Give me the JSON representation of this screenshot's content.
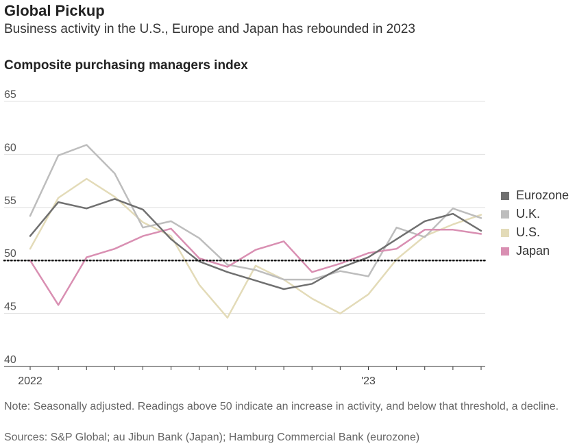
{
  "header": {
    "title": "Global Pickup",
    "subtitle": "Business activity in the U.S., Europe and Japan has rebounded in 2023",
    "chart_label": "Composite purchasing managers index"
  },
  "footer": {
    "note": "Note: Seasonally adjusted. Readings above 50 indicate an increase in activity, and below that threshold, a decline.",
    "sources": "Sources: S&P Global; au Jibun Bank (Japan); Hamburg Commercial Bank (eurozone)"
  },
  "colors": {
    "Eurozone": "#707070",
    "U.K.": "#bdbdbd",
    "U.S.": "#e3dbb8",
    "Japan": "#d98fb2",
    "reference_line": "#111111",
    "grid": "#e0e0e0"
  },
  "chart_data": {
    "type": "line",
    "title": "Composite purchasing managers index",
    "x": [
      "2022-01",
      "2022-02",
      "2022-03",
      "2022-04",
      "2022-05",
      "2022-06",
      "2022-07",
      "2022-08",
      "2022-09",
      "2022-10",
      "2022-11",
      "2022-12",
      "2023-01",
      "2023-02",
      "2023-03",
      "2023-04",
      "2023-05"
    ],
    "x_tick_labels": [
      {
        "index": 0,
        "label": "2022"
      },
      {
        "index": 12,
        "label": "'23"
      }
    ],
    "ylim": [
      40,
      65
    ],
    "yticks": [
      40,
      45,
      50,
      55,
      60,
      65
    ],
    "reference_line": 50,
    "grid": true,
    "legend_position": "right",
    "series": [
      {
        "name": "Eurozone",
        "values": [
          52.3,
          55.5,
          54.9,
          55.8,
          54.8,
          52.0,
          49.9,
          48.9,
          48.1,
          47.3,
          47.8,
          49.3,
          50.3,
          52.0,
          53.7,
          54.4,
          52.8
        ]
      },
      {
        "name": "U.K.",
        "values": [
          54.2,
          59.9,
          60.9,
          58.2,
          53.1,
          53.7,
          52.1,
          49.6,
          49.1,
          48.2,
          48.2,
          49.0,
          48.5,
          53.1,
          52.2,
          54.9,
          54.0
        ]
      },
      {
        "name": "U.S.",
        "values": [
          51.1,
          55.9,
          57.7,
          56.0,
          53.6,
          52.3,
          47.7,
          44.6,
          49.5,
          48.2,
          46.4,
          45.0,
          46.8,
          50.1,
          52.3,
          53.4,
          54.3
        ]
      },
      {
        "name": "Japan",
        "values": [
          50.0,
          45.8,
          50.3,
          51.1,
          52.3,
          53.0,
          50.2,
          49.4,
          51.0,
          51.8,
          48.9,
          49.7,
          50.7,
          51.1,
          52.9,
          52.9,
          52.5
        ]
      }
    ]
  }
}
